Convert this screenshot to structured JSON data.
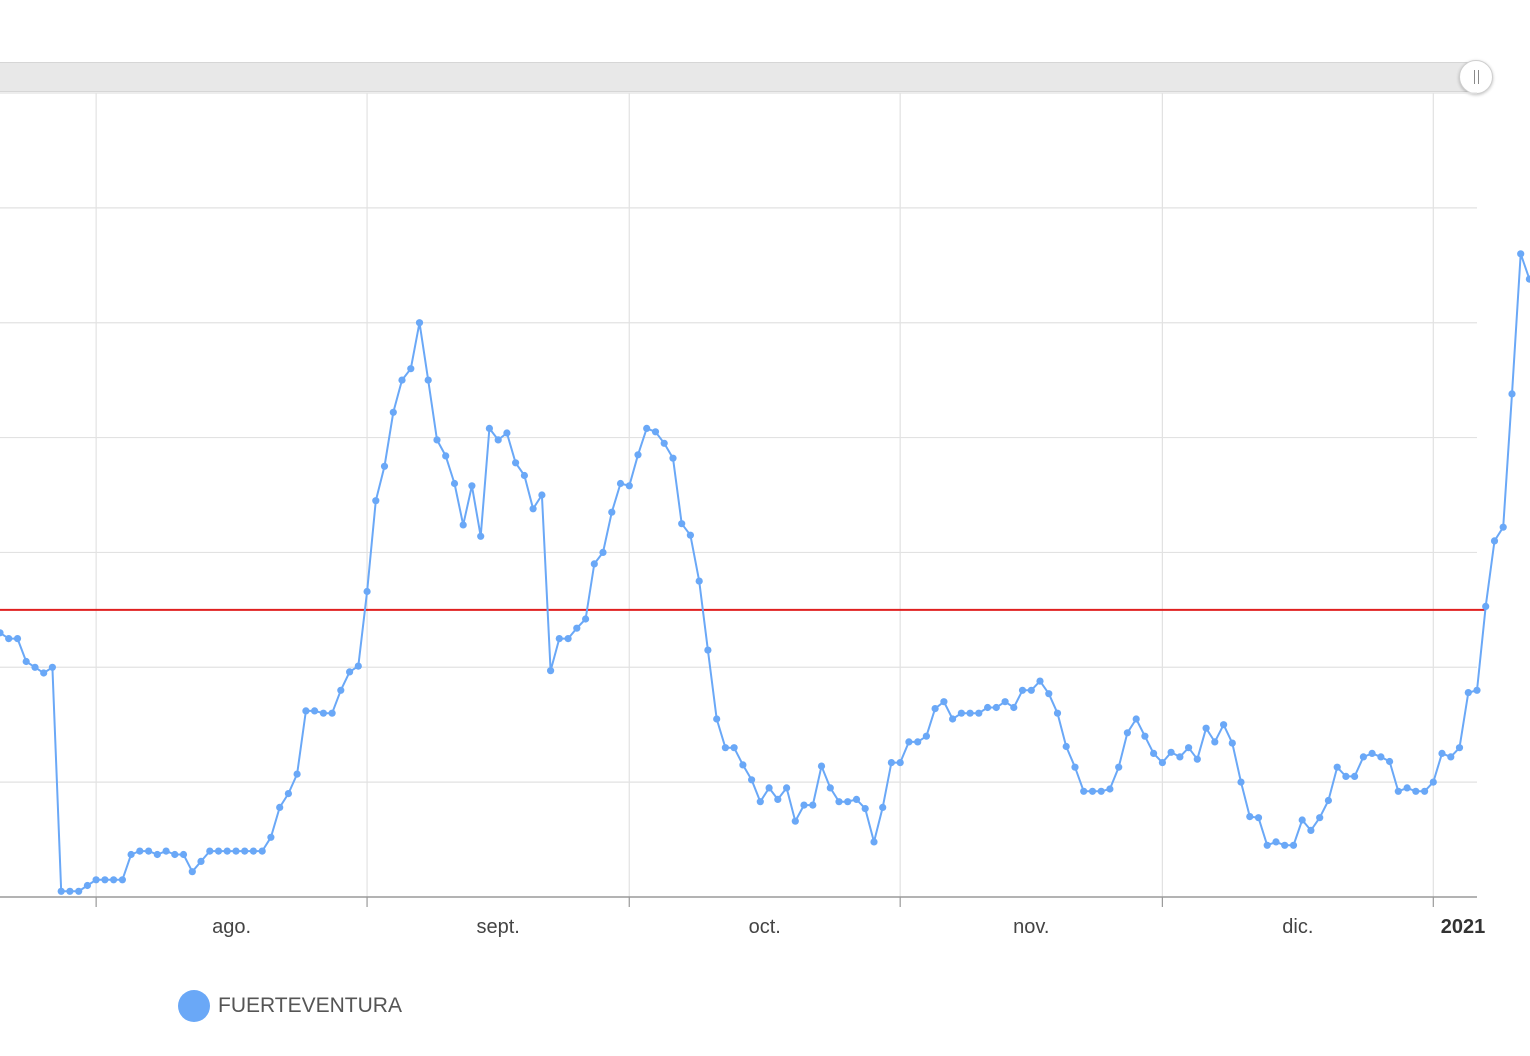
{
  "chart_data": {
    "type": "line",
    "title": "",
    "xlabel": "",
    "ylabel": "",
    "x_tick_labels": [
      {
        "label": "ago.",
        "bold": false
      },
      {
        "label": "sept.",
        "bold": false
      },
      {
        "label": "oct.",
        "bold": false
      },
      {
        "label": "nov.",
        "bold": false
      },
      {
        "label": "dic.",
        "bold": false
      },
      {
        "label": "2021",
        "bold": true
      }
    ],
    "x_domain": [
      "2020-07-21",
      "2021-01-06"
    ],
    "y_domain": [
      0,
      7
    ],
    "grid": true,
    "markers": true,
    "reference_line": {
      "value": 2.5,
      "color": "#e02020"
    },
    "legend": {
      "placement": "bottom-left"
    },
    "series": [
      {
        "name": "FUERTEVENTURA",
        "color": "#6aa8f7",
        "start_date": "2020-07-21",
        "values": [
          2.3,
          2.25,
          2.25,
          2.05,
          2.0,
          1.95,
          2.0,
          0.05,
          0.05,
          0.05,
          0.1,
          0.15,
          0.15,
          0.15,
          0.15,
          0.37,
          0.4,
          0.4,
          0.37,
          0.4,
          0.37,
          0.37,
          0.22,
          0.31,
          0.4,
          0.4,
          0.4,
          0.4,
          0.4,
          0.4,
          0.4,
          0.52,
          0.78,
          0.9,
          1.07,
          1.62,
          1.62,
          1.6,
          1.6,
          1.8,
          1.96,
          2.01,
          2.66,
          3.45,
          3.75,
          4.22,
          4.5,
          4.6,
          5.0,
          4.5,
          3.98,
          3.84,
          3.6,
          3.24,
          3.58,
          3.14,
          4.08,
          3.98,
          4.04,
          3.78,
          3.67,
          3.38,
          3.5,
          1.97,
          2.25,
          2.25,
          2.34,
          2.42,
          2.9,
          3.0,
          3.35,
          3.6,
          3.58,
          3.85,
          4.08,
          4.05,
          3.95,
          3.82,
          3.25,
          3.15,
          2.75,
          2.15,
          1.55,
          1.3,
          1.3,
          1.15,
          1.02,
          0.83,
          0.95,
          0.85,
          0.95,
          0.66,
          0.8,
          0.8,
          1.14,
          0.95,
          0.83,
          0.83,
          0.85,
          0.77,
          0.48,
          0.78,
          1.17,
          1.17,
          1.35,
          1.35,
          1.4,
          1.64,
          1.7,
          1.55,
          1.6,
          1.6,
          1.6,
          1.65,
          1.65,
          1.7,
          1.65,
          1.8,
          1.8,
          1.88,
          1.77,
          1.6,
          1.31,
          1.13,
          0.92,
          0.92,
          0.92,
          0.94,
          1.13,
          1.43,
          1.55,
          1.4,
          1.25,
          1.17,
          1.26,
          1.22,
          1.3,
          1.2,
          1.47,
          1.35,
          1.5,
          1.34,
          1.0,
          0.7,
          0.69,
          0.45,
          0.48,
          0.45,
          0.45,
          0.67,
          0.58,
          0.69,
          0.84,
          1.13,
          1.05,
          1.05,
          1.22,
          1.25,
          1.22,
          1.18,
          0.92,
          0.95,
          0.92,
          0.92,
          1.0,
          1.25,
          1.22,
          1.3,
          1.78,
          1.8,
          2.53,
          3.1,
          3.22,
          4.38,
          5.6,
          5.38,
          5.52,
          5.33,
          5.38,
          5.68,
          5.05,
          4.37
        ]
      }
    ]
  }
}
